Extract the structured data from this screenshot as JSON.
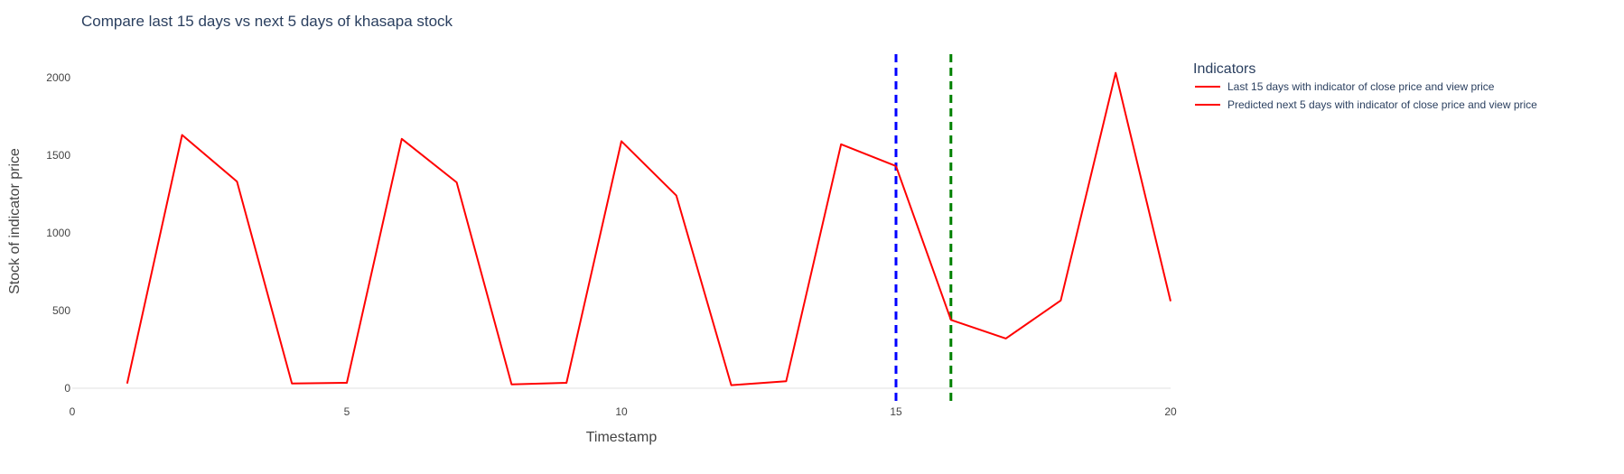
{
  "chart_data": {
    "type": "line",
    "title": "Compare last 15 days vs next 5 days of khasapa stock",
    "xlabel": "Timestamp",
    "ylabel": "Stock of indicator price",
    "xlim": [
      0,
      20
    ],
    "ylim": [
      0,
      2150
    ],
    "x_ticks": [
      0,
      5,
      10,
      15,
      20
    ],
    "y_ticks": [
      0,
      500,
      1000,
      1500,
      2000
    ],
    "grid": false,
    "legend": {
      "title": "Indicators",
      "placement": "top-right, outside plot"
    },
    "series": [
      {
        "name": "Last 15 days with indicator of close price and view price",
        "color": "#ff0000",
        "x": [
          1,
          2,
          3,
          4,
          5,
          6,
          7,
          8,
          9,
          10,
          11,
          12,
          13,
          14,
          15
        ],
        "y": [
          30,
          1630,
          1330,
          30,
          35,
          1605,
          1325,
          25,
          35,
          1590,
          1240,
          20,
          45,
          1570,
          1430
        ]
      },
      {
        "name": "Predicted next 5 days with indicator of close price and view price",
        "color": "#ff0000",
        "x": [
          15,
          16,
          17,
          18,
          19,
          20
        ],
        "y": [
          1430,
          440,
          320,
          565,
          2030,
          560
        ]
      }
    ],
    "vlines": [
      {
        "x": 15,
        "color": "#0000ff",
        "style": "dashed"
      },
      {
        "x": 16,
        "color": "#008000",
        "style": "dashed"
      }
    ]
  }
}
